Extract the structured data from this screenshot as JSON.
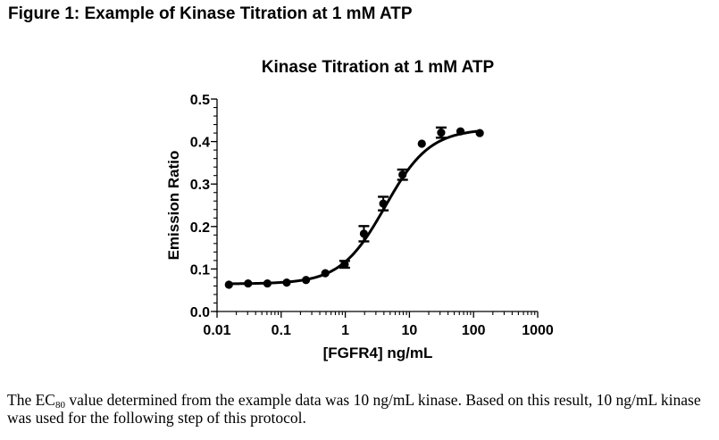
{
  "figure_title": "Figure 1: Example of Kinase Titration at 1 mM ATP",
  "caption": {
    "part1": "The EC",
    "subscript": "80",
    "part2": " value determined from the example data was 10 ng/mL kinase.  Based on this result, 10 ng/mL kinase was used for the following step of this protocol."
  },
  "chart_data": {
    "type": "scatter",
    "title": "Kinase Titration at 1 mM ATP",
    "xlabel": "[FGFR4] ng/mL",
    "ylabel": "Emission Ratio",
    "xscale": "log",
    "xlim": [
      0.01,
      1000
    ],
    "ylim": [
      0.0,
      0.5
    ],
    "xticks": [
      "0.01",
      "0.1",
      "1",
      "10",
      "100",
      "1000"
    ],
    "xtick_values": [
      0.01,
      0.1,
      1,
      10,
      100,
      1000
    ],
    "yticks": [
      "0.0",
      "0.1",
      "0.2",
      "0.3",
      "0.4",
      "0.5"
    ],
    "ytick_values": [
      0.0,
      0.1,
      0.2,
      0.3,
      0.4,
      0.5
    ],
    "grid": false,
    "legend": "none",
    "series": [
      {
        "name": "FGFR4",
        "color": "#000000",
        "marker": "circle",
        "fit": "sigmoidal dose-response",
        "x": [
          0.0153,
          0.0305,
          0.061,
          0.122,
          0.244,
          0.488,
          0.977,
          1.95,
          3.91,
          7.81,
          15.6,
          31.25,
          62.5,
          125
        ],
        "y": [
          0.063,
          0.066,
          0.066,
          0.068,
          0.074,
          0.09,
          0.111,
          0.183,
          0.254,
          0.322,
          0.395,
          0.421,
          0.424,
          0.42
        ],
        "error": [
          0.002,
          0.002,
          0.002,
          0.002,
          0.002,
          0.003,
          0.008,
          0.018,
          0.016,
          0.012,
          0.003,
          0.012,
          0.003,
          0.003
        ]
      }
    ],
    "fit_params": {
      "bottom": 0.065,
      "top": 0.43,
      "ec50": 4.2,
      "hill": 1.25
    }
  }
}
